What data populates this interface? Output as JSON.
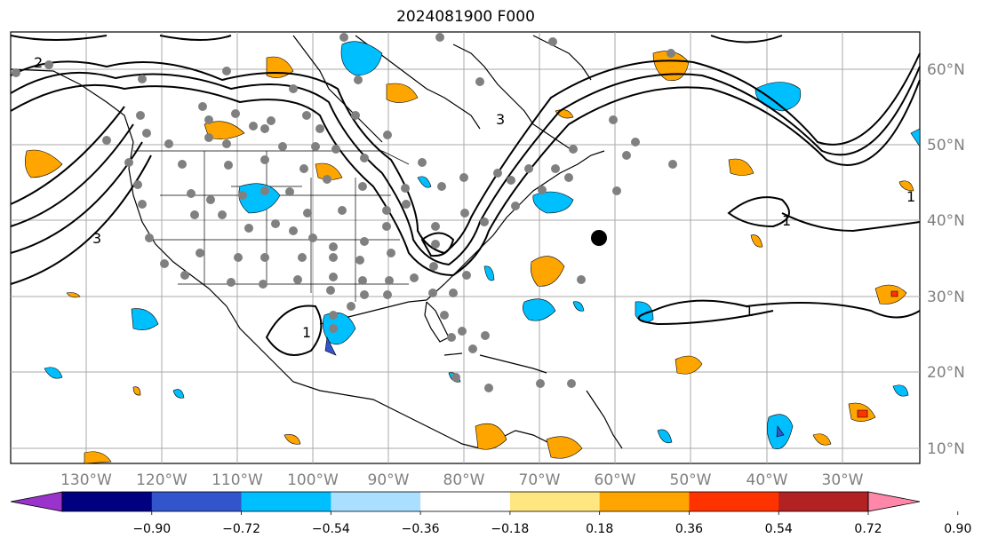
{
  "title": "2024081900 F000",
  "longitude_labels": [
    "130°W",
    "120°W",
    "110°W",
    "100°W",
    "90°W",
    "80°W",
    "70°W",
    "60°W",
    "50°W",
    "40°W",
    "30°W"
  ],
  "latitude_labels": [
    "60°N",
    "50°N",
    "40°N",
    "30°N",
    "20°N",
    "10°N"
  ],
  "contour_labels": [
    "2",
    "3",
    "3",
    "1",
    "1",
    "1",
    "1"
  ],
  "colorbar": {
    "tick_labels": [
      "−0.90",
      "−0.72",
      "−0.54",
      "−0.36",
      "−0.18",
      "0.18",
      "0.36",
      "0.54",
      "0.72",
      "0.90"
    ],
    "colors": [
      "#9933cc",
      "#000080",
      "#3355cc",
      "#00bfff",
      "#aadfff",
      "#ffffff",
      "#ffe680",
      "#ffa500",
      "#ff3300",
      "#b22222",
      "#ff88aa"
    ]
  },
  "colors": {
    "ocean": "#ffffff",
    "land_line": "#000000",
    "grid": "#999999",
    "obs_dot": "#808080",
    "marker": "#000000"
  }
}
